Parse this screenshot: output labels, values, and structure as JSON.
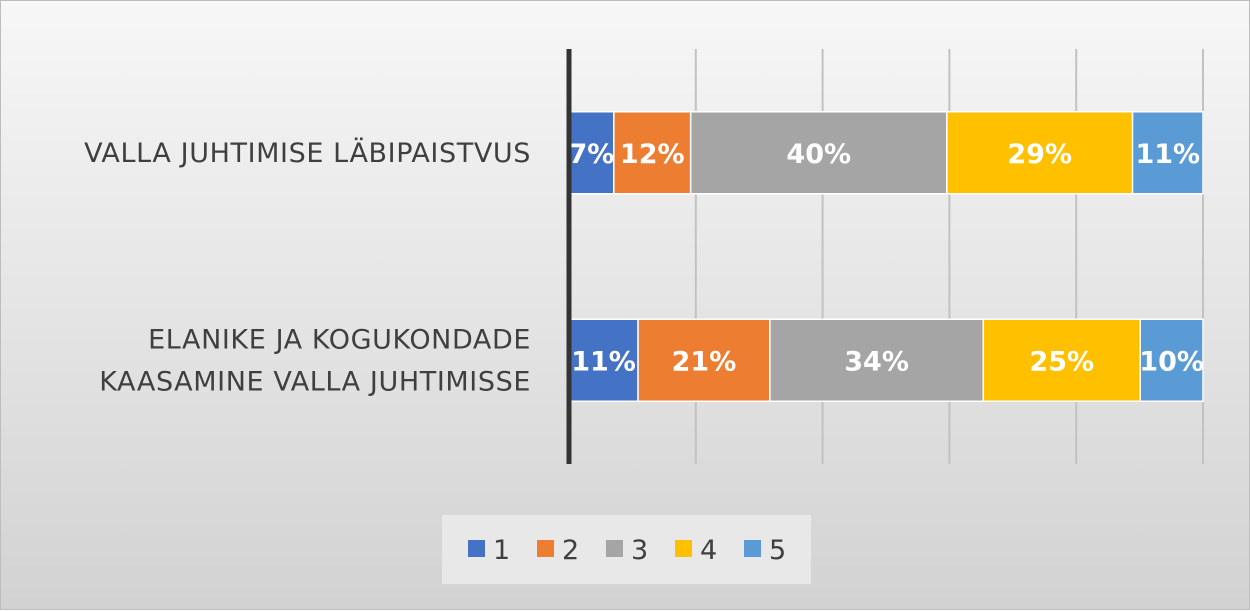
{
  "chart_data": {
    "type": "bar",
    "orientation": "horizontal",
    "stacked": "percent",
    "categories": [
      "VALLA JUHTIMISE LÄBIPAISTVUS",
      "ELANIKE JA KOGUKONDADE KAASAMINE VALLA JUHTIMISSE"
    ],
    "series": [
      {
        "name": "1",
        "color": "#4472c4",
        "values": [
          7,
          11
        ]
      },
      {
        "name": "2",
        "color": "#ed7d31",
        "values": [
          12,
          21
        ]
      },
      {
        "name": "3",
        "color": "#a5a5a5",
        "values": [
          40,
          34
        ]
      },
      {
        "name": "4",
        "color": "#ffc000",
        "values": [
          29,
          25
        ]
      },
      {
        "name": "5",
        "color": "#5b9bd5",
        "values": [
          11,
          10
        ]
      }
    ],
    "data_labels": [
      [
        "7%",
        "12%",
        "40%",
        "29%",
        "11%"
      ],
      [
        "11%",
        "21%",
        "34%",
        "25%",
        "10%"
      ]
    ],
    "xlim": [
      0,
      100
    ],
    "grid": true,
    "legend": "bottom",
    "category_label_lines": [
      [
        "VALLA JUHTIMISE LÄBIPAISTVUS"
      ],
      [
        "ELANIKE JA KOGUKONDADE",
        "KAASAMINE VALLA JUHTIMISSE"
      ]
    ]
  }
}
